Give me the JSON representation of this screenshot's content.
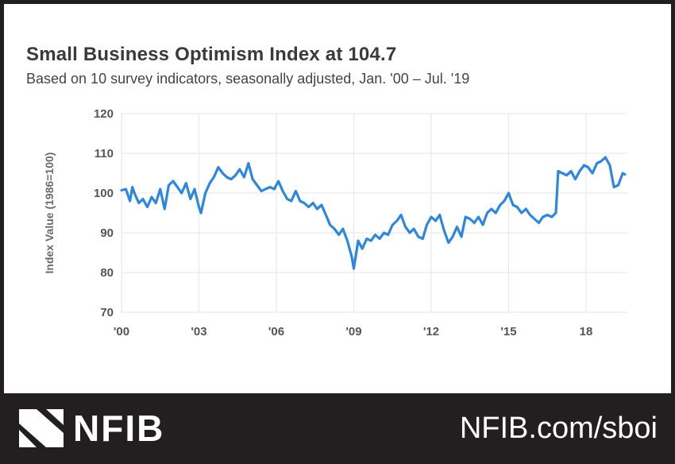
{
  "title": "Small Business Optimism Index at 104.7",
  "subtitle": "Based on 10 survey indicators, seasonally adjusted,  Jan. '00 – Jul. '19",
  "footer": {
    "logo_text": "NFIB",
    "url": "NFIB.com/sboi"
  },
  "colors": {
    "line": "#2f86dd",
    "footer_bg": "#231f20",
    "grid": "#e6e6e6"
  },
  "chart_data": {
    "type": "line",
    "title": "Small Business Optimism Index at 104.7",
    "ylabel": "Index Value (1986=100)",
    "xlabel": "",
    "ylim": [
      70,
      120
    ],
    "yticks": [
      70,
      80,
      90,
      100,
      110,
      120
    ],
    "xlim": [
      2000,
      2019.6
    ],
    "xticks": [
      {
        "value": 2000,
        "label": "'00"
      },
      {
        "value": 2003,
        "label": "'03"
      },
      {
        "value": 2006,
        "label": "'06"
      },
      {
        "value": 2009,
        "label": "'09"
      },
      {
        "value": 2012,
        "label": "'12"
      },
      {
        "value": 2015,
        "label": "'15"
      },
      {
        "value": 2018,
        "label": "18"
      }
    ],
    "grid": true,
    "series": [
      {
        "x": [
          2000.0,
          2000.17,
          2000.33,
          2000.42,
          2000.5,
          2000.67,
          2000.83,
          2001.0,
          2001.17,
          2001.33,
          2001.5,
          2001.67,
          2001.83,
          2002.0,
          2002.17,
          2002.33,
          2002.5,
          2002.67,
          2002.83,
          2003.0,
          2003.08,
          2003.25,
          2003.42,
          2003.58,
          2003.75,
          2003.92,
          2004.08,
          2004.25,
          2004.42,
          2004.58,
          2004.75,
          2004.92,
          2005.08,
          2005.25,
          2005.42,
          2005.58,
          2005.75,
          2005.92,
          2006.08,
          2006.25,
          2006.42,
          2006.58,
          2006.75,
          2006.92,
          2007.08,
          2007.25,
          2007.42,
          2007.58,
          2007.75,
          2007.92,
          2008.08,
          2008.25,
          2008.42,
          2008.58,
          2008.75,
          2008.92,
          2009.0,
          2009.17,
          2009.33,
          2009.5,
          2009.67,
          2009.83,
          2010.0,
          2010.17,
          2010.33,
          2010.5,
          2010.67,
          2010.83,
          2011.0,
          2011.17,
          2011.33,
          2011.5,
          2011.67,
          2011.83,
          2012.0,
          2012.17,
          2012.33,
          2012.5,
          2012.67,
          2012.83,
          2013.0,
          2013.17,
          2013.33,
          2013.5,
          2013.67,
          2013.83,
          2014.0,
          2014.17,
          2014.33,
          2014.5,
          2014.67,
          2014.83,
          2015.0,
          2015.17,
          2015.33,
          2015.5,
          2015.67,
          2015.83,
          2016.0,
          2016.17,
          2016.33,
          2016.5,
          2016.67,
          2016.83,
          2016.92,
          2017.08,
          2017.25,
          2017.42,
          2017.58,
          2017.75,
          2017.92,
          2018.08,
          2018.25,
          2018.42,
          2018.58,
          2018.75,
          2018.92,
          2019.08,
          2019.25,
          2019.42,
          2019.5
        ],
        "values": [
          100.7,
          101.0,
          98.0,
          101.5,
          100.0,
          97.5,
          98.5,
          96.5,
          99.0,
          97.5,
          101.0,
          96.0,
          102.0,
          103.0,
          101.5,
          100.0,
          102.5,
          98.5,
          101.0,
          96.5,
          95.0,
          100.0,
          102.5,
          104.0,
          106.5,
          105.0,
          104.0,
          103.5,
          104.5,
          106.0,
          104.0,
          107.5,
          103.5,
          102.0,
          100.5,
          101.0,
          101.5,
          101.0,
          103.0,
          100.5,
          98.5,
          98.0,
          100.5,
          98.0,
          97.5,
          96.5,
          97.5,
          96.0,
          97.0,
          94.5,
          92.0,
          91.0,
          89.5,
          91.0,
          88.0,
          84.0,
          81.0,
          88.0,
          86.0,
          88.5,
          88.0,
          89.5,
          88.5,
          90.0,
          89.5,
          92.0,
          93.0,
          94.5,
          91.5,
          90.0,
          91.0,
          89.0,
          88.5,
          92.0,
          94.0,
          93.0,
          94.5,
          90.5,
          87.5,
          89.0,
          91.5,
          89.0,
          94.0,
          93.5,
          92.5,
          94.0,
          92.0,
          95.0,
          96.0,
          95.0,
          97.0,
          98.0,
          100.0,
          97.0,
          96.5,
          95.0,
          96.0,
          94.5,
          93.5,
          92.5,
          94.0,
          94.5,
          94.0,
          95.0,
          105.5,
          105.0,
          104.5,
          105.5,
          103.5,
          105.5,
          107.0,
          106.5,
          105.0,
          107.5,
          108.0,
          109.0,
          107.0,
          101.5,
          102.0,
          105.0,
          104.7
        ]
      }
    ]
  }
}
